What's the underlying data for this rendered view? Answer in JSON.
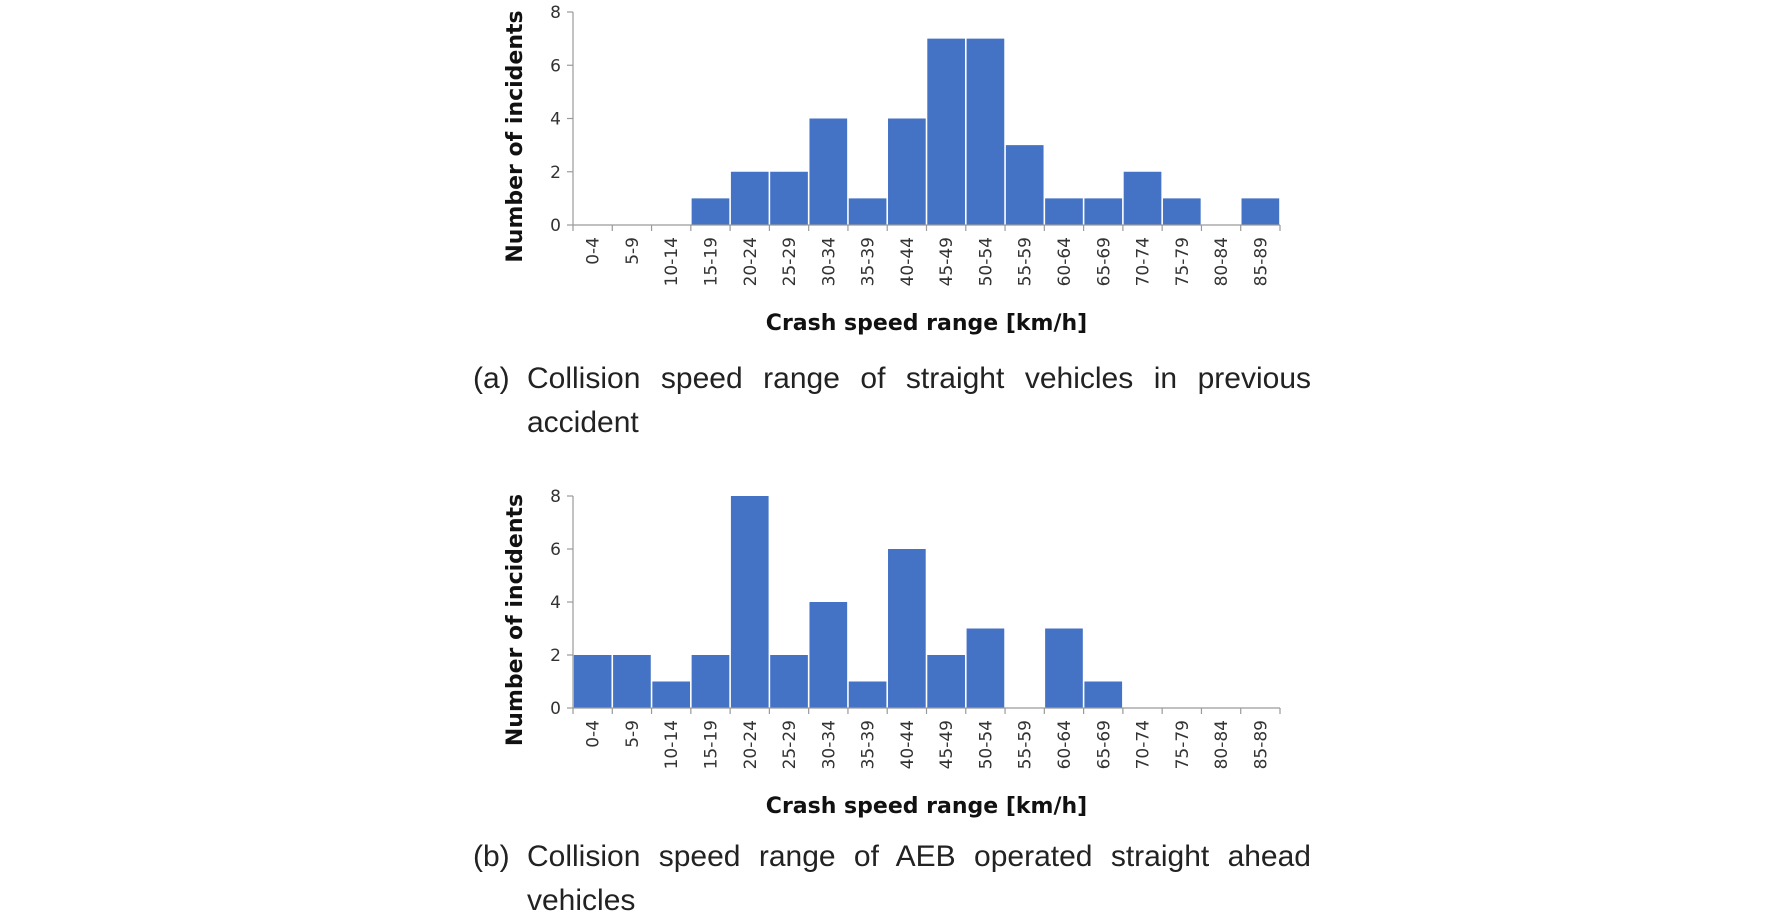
{
  "chart_data": [
    {
      "type": "bar",
      "categories": [
        "0-4",
        "5-9",
        "10-14",
        "15-19",
        "20-24",
        "25-29",
        "30-34",
        "35-39",
        "40-44",
        "45-49",
        "50-54",
        "55-59",
        "60-64",
        "65-69",
        "70-74",
        "75-79",
        "80-84",
        "85-89"
      ],
      "values": [
        0,
        0,
        0,
        1,
        2,
        2,
        4,
        1,
        4,
        7,
        7,
        3,
        1,
        1,
        2,
        1,
        0,
        1
      ],
      "xlabel": "Crash speed range [km/h]",
      "ylabel": "Number of incidents",
      "ylim": [
        0,
        8
      ],
      "yticks": [
        0,
        2,
        4,
        6,
        8
      ],
      "grid": false,
      "bar_color": "#4472C4",
      "caption_label": "(a)",
      "caption": "Collision speed range of straight vehicles in previous accident"
    },
    {
      "type": "bar",
      "categories": [
        "0-4",
        "5-9",
        "10-14",
        "15-19",
        "20-24",
        "25-29",
        "30-34",
        "35-39",
        "40-44",
        "45-49",
        "50-54",
        "55-59",
        "60-64",
        "65-69",
        "70-74",
        "75-79",
        "80-84",
        "85-89"
      ],
      "values": [
        2,
        2,
        1,
        2,
        8,
        2,
        4,
        1,
        6,
        2,
        3,
        0,
        3,
        1,
        0,
        0,
        0,
        0
      ],
      "xlabel": "Crash speed range [km/h]",
      "ylabel": "Number of incidents",
      "ylim": [
        0,
        8
      ],
      "yticks": [
        0,
        2,
        4,
        6,
        8
      ],
      "grid": false,
      "bar_color": "#4472C4",
      "caption_label": "(b)",
      "caption": "Collision speed range of AEB operated straight ahead vehicles"
    }
  ]
}
